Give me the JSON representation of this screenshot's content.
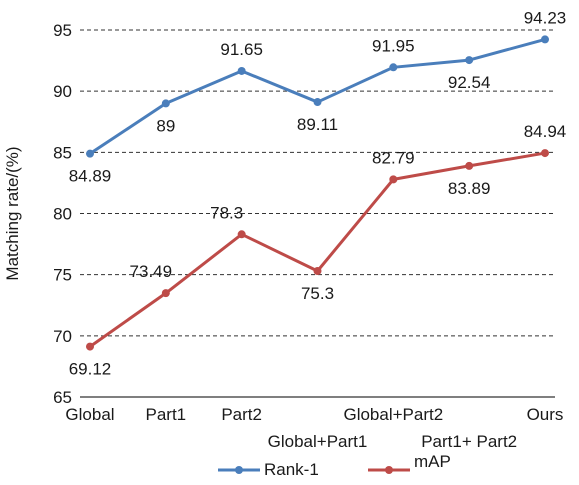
{
  "chart_data": {
    "type": "line",
    "categories": [
      "Global",
      "Part1",
      "Part2",
      "Global+Part1",
      "Global+Part2",
      "Part1+ Part2",
      "Ours"
    ],
    "series": [
      {
        "name": "Rank-1",
        "values": [
          84.89,
          89,
          91.65,
          89.11,
          91.95,
          92.54,
          94.23
        ],
        "labels": [
          "84.89",
          "89",
          "91.65",
          "89.11",
          "91.95",
          "92.54",
          "94.23"
        ],
        "color": "#4a7ebb"
      },
      {
        "name": "mAP",
        "values": [
          69.12,
          73.49,
          78.3,
          75.3,
          82.79,
          83.89,
          84.94
        ],
        "labels": [
          "69.12",
          "73.49",
          "78.3",
          "75.3",
          "82.79",
          "83.89",
          "84.94"
        ],
        "color": "#be4b48"
      }
    ],
    "ylabel": "Matching rate/(%)",
    "xlabel": "",
    "ylim": [
      65,
      95
    ],
    "yticks": [
      65,
      70,
      75,
      80,
      85,
      90,
      95
    ],
    "grid": true,
    "legend_position": "bottom"
  }
}
